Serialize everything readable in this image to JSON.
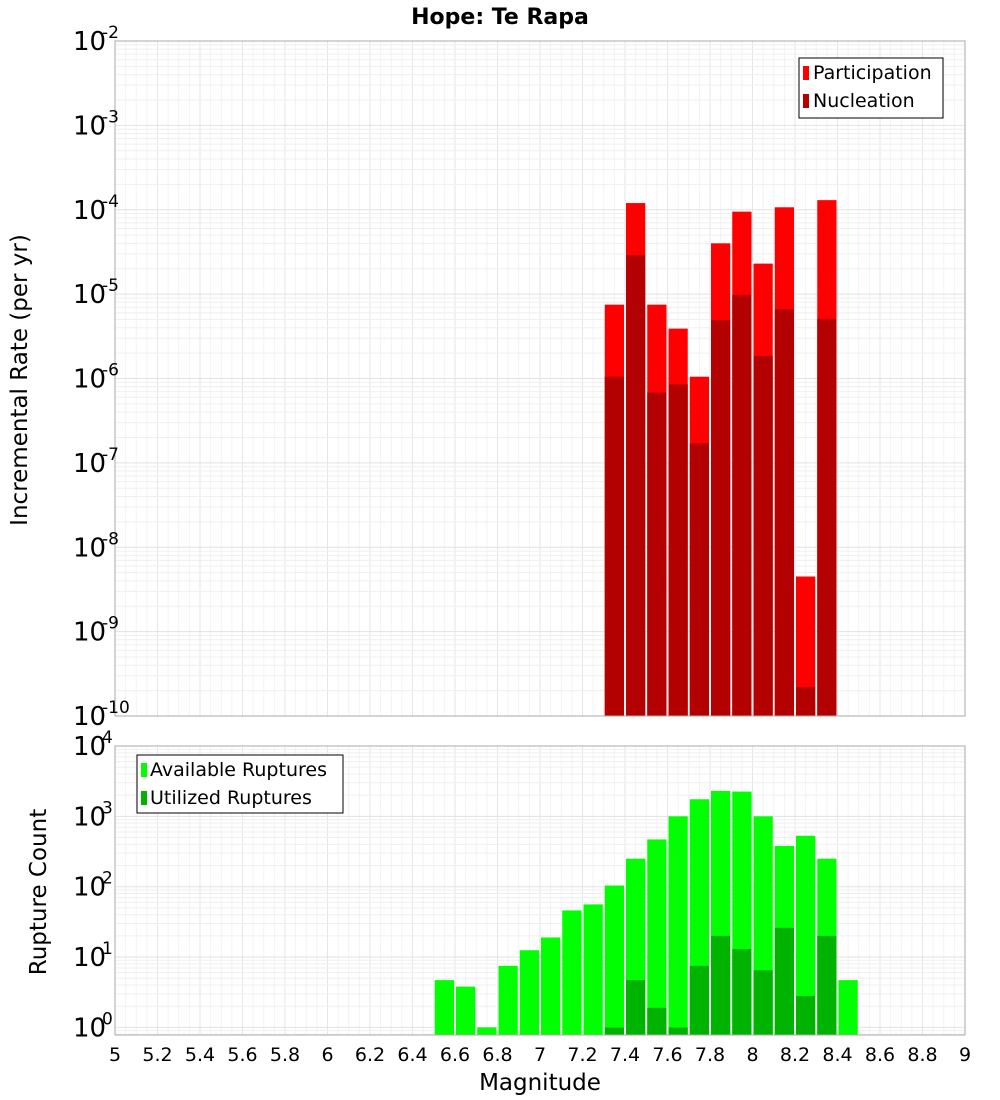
{
  "title": "Hope: Te Rapa",
  "xlabel": "Magnitude",
  "chart_data": [
    {
      "type": "bar",
      "stacked_overlay": true,
      "ylabel": "Incremental Rate (per yr)",
      "yscale": "log",
      "ylim": [
        1e-10,
        0.01
      ],
      "xlim": [
        5,
        9
      ],
      "grid": true,
      "legend_position": "top-right",
      "x": [
        7.35,
        7.45,
        7.55,
        7.65,
        7.75,
        7.85,
        7.95,
        8.05,
        8.15,
        8.25,
        8.35
      ],
      "series": [
        {
          "name": "Participation",
          "color": "#ff0000",
          "values": [
            7.5e-06,
            0.00012,
            7.5e-06,
            3.9e-06,
            1.05e-06,
            4e-05,
            9.5e-05,
            2.3e-05,
            0.000107,
            4.5e-09,
            0.00013
          ]
        },
        {
          "name": "Nucleation",
          "color": "#b30000",
          "values": [
            1.05e-06,
            2.9e-05,
            6.8e-07,
            8.5e-07,
            1.7e-07,
            4.9e-06,
            9.8e-06,
            1.85e-06,
            6.6e-06,
            2.2e-10,
            5.1e-06
          ]
        }
      ]
    },
    {
      "type": "bar",
      "stacked_overlay": true,
      "ylabel": "Rupture Count",
      "yscale": "log",
      "ylim": [
        0.78,
        10000
      ],
      "xlim": [
        5,
        9
      ],
      "grid": true,
      "legend_position": "top-left",
      "x": [
        6.55,
        6.65,
        6.75,
        6.85,
        6.95,
        7.05,
        7.15,
        7.25,
        7.35,
        7.45,
        7.55,
        7.65,
        7.75,
        7.85,
        7.95,
        8.05,
        8.15,
        8.25,
        8.35,
        8.45
      ],
      "series": [
        {
          "name": "Available Ruptures",
          "color": "#00ff00",
          "values": [
            4.7,
            3.8,
            1,
            7.5,
            12.5,
            19,
            46,
            56,
            104,
            250,
            470,
            1000,
            1750,
            2300,
            2250,
            1000,
            380,
            530,
            250,
            4.7
          ]
        },
        {
          "name": "Utilized Ruptures",
          "color": "#00b300",
          "values": [
            0,
            0,
            0,
            0,
            0,
            0,
            0,
            0,
            1,
            4.7,
            1.9,
            1,
            7.5,
            20,
            13,
            6.5,
            26,
            2.8,
            20,
            0
          ]
        }
      ]
    }
  ],
  "xticks": [
    "5",
    "5.2",
    "5.4",
    "5.6",
    "5.8",
    "6",
    "6.2",
    "6.4",
    "6.6",
    "6.8",
    "7",
    "7.2",
    "7.4",
    "7.6",
    "7.8",
    "8",
    "8.2",
    "8.4",
    "8.6",
    "8.8",
    "9"
  ],
  "top_yticks": [
    {
      "base": "10",
      "exp": "-2"
    },
    {
      "base": "10",
      "exp": "-3"
    },
    {
      "base": "10",
      "exp": "-4"
    },
    {
      "base": "10",
      "exp": "-5"
    },
    {
      "base": "10",
      "exp": "-6"
    },
    {
      "base": "10",
      "exp": "-7"
    },
    {
      "base": "10",
      "exp": "-8"
    },
    {
      "base": "10",
      "exp": "-9"
    },
    {
      "base": "10",
      "exp": "-10"
    }
  ],
  "bottom_yticks": [
    {
      "base": "10",
      "exp": "4"
    },
    {
      "base": "10",
      "exp": "3"
    },
    {
      "base": "10",
      "exp": "2"
    },
    {
      "base": "10",
      "exp": "1"
    },
    {
      "base": "10",
      "exp": "0"
    }
  ]
}
